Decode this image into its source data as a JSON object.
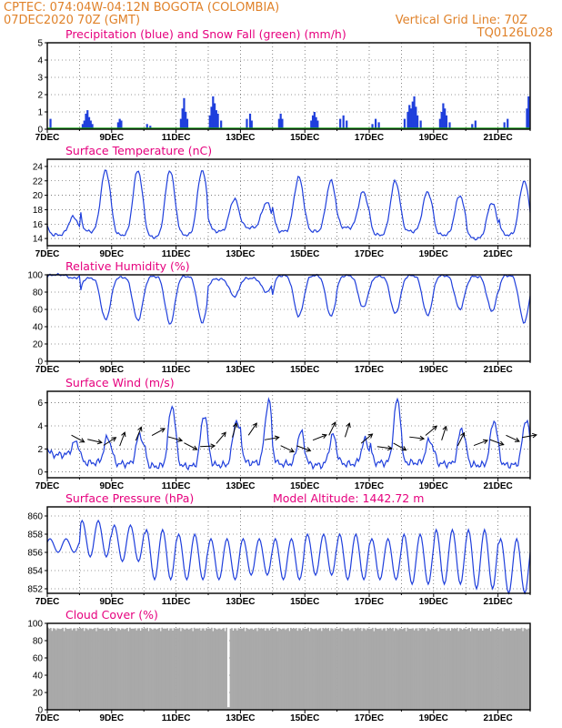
{
  "header": {
    "line1": "CPTEC:    074:04W-04:12N   BOGOTA (COLOMBIA)",
    "line2": "07DEC2020 70Z (GMT)",
    "grid_note": "Vertical Grid Line: 70Z",
    "code": "TQ0126L028"
  },
  "colors": {
    "header": "#e0822a",
    "title": "#e6007e",
    "series": "#1f3fdc",
    "snow": "#1aa01a",
    "cloud": "#a9a9a9"
  },
  "chart_data": [
    {
      "id": "precip",
      "type": "bar",
      "title": "Precipitation (blue) and Snow Fall (green) (mm/h)",
      "ylim": [
        0,
        5
      ],
      "yticks": [
        0,
        1,
        2,
        3,
        4,
        5
      ],
      "x_labels": [
        "7DEC",
        "9DEC",
        "11DEC",
        "13DEC",
        "15DEC",
        "17DEC",
        "19DEC",
        "21DEC"
      ],
      "x_range_days": [
        0,
        15
      ],
      "series": [
        {
          "name": "Precipitation",
          "color": "#1f3fdc",
          "points": [
            [
              0.1,
              0.6
            ],
            [
              1.1,
              0.3
            ],
            [
              1.15,
              0.5
            ],
            [
              1.2,
              0.9
            ],
            [
              1.25,
              1.1
            ],
            [
              1.3,
              0.7
            ],
            [
              1.35,
              0.5
            ],
            [
              1.4,
              0.3
            ],
            [
              2.2,
              0.4
            ],
            [
              2.25,
              0.6
            ],
            [
              2.3,
              0.5
            ],
            [
              3.1,
              0.3
            ],
            [
              3.2,
              0.2
            ],
            [
              4.15,
              0.6
            ],
            [
              4.2,
              1.2
            ],
            [
              4.25,
              1.8
            ],
            [
              4.3,
              1.0
            ],
            [
              4.35,
              0.6
            ],
            [
              5.05,
              0.8
            ],
            [
              5.1,
              1.3
            ],
            [
              5.15,
              1.9
            ],
            [
              5.2,
              1.5
            ],
            [
              5.25,
              1.1
            ],
            [
              5.3,
              0.9
            ],
            [
              5.4,
              0.5
            ],
            [
              6.2,
              0.6
            ],
            [
              6.3,
              0.9
            ],
            [
              6.35,
              0.5
            ],
            [
              7.2,
              0.6
            ],
            [
              7.25,
              0.9
            ],
            [
              7.3,
              0.6
            ],
            [
              8.2,
              0.5
            ],
            [
              8.25,
              0.8
            ],
            [
              8.3,
              1.0
            ],
            [
              8.35,
              0.7
            ],
            [
              8.4,
              0.5
            ],
            [
              9.1,
              0.6
            ],
            [
              9.2,
              0.8
            ],
            [
              9.3,
              0.5
            ],
            [
              10.1,
              0.3
            ],
            [
              10.2,
              0.6
            ],
            [
              10.3,
              0.4
            ],
            [
              11.1,
              0.6
            ],
            [
              11.2,
              1.0
            ],
            [
              11.25,
              1.4
            ],
            [
              11.3,
              1.2
            ],
            [
              11.35,
              1.6
            ],
            [
              11.4,
              1.9
            ],
            [
              11.45,
              1.3
            ],
            [
              11.5,
              0.8
            ],
            [
              11.6,
              0.5
            ],
            [
              12.2,
              0.6
            ],
            [
              12.25,
              1.0
            ],
            [
              12.3,
              1.5
            ],
            [
              12.35,
              1.2
            ],
            [
              12.4,
              0.8
            ],
            [
              12.5,
              0.4
            ],
            [
              13.2,
              0.3
            ],
            [
              13.3,
              0.5
            ],
            [
              14.2,
              0.4
            ],
            [
              14.3,
              0.6
            ],
            [
              14.9,
              1.2
            ],
            [
              14.95,
              1.9
            ]
          ]
        },
        {
          "name": "Snow Fall",
          "color": "#1aa01a",
          "points": []
        }
      ]
    },
    {
      "id": "temp",
      "type": "line",
      "title": "Surface Temperature (nC)",
      "ylim": [
        13,
        25
      ],
      "yticks": [
        14,
        16,
        18,
        20,
        22,
        24
      ],
      "x_labels": [
        "7DEC",
        "9DEC",
        "11DEC",
        "13DEC",
        "15DEC",
        "17DEC",
        "19DEC",
        "21DEC"
      ],
      "x_range_days": [
        0,
        15
      ],
      "series": [
        {
          "name": "Surface Temperature",
          "color": "#1f3fdc",
          "daily_min": [
            14.5,
            15,
            14.5,
            14.2,
            14.5,
            15,
            15.5,
            15,
            15,
            15.5,
            14.5,
            15,
            14.5,
            14,
            14.5,
            17.5
          ],
          "daily_max": [
            17,
            23.5,
            23.5,
            23.5,
            23.5,
            19.5,
            19,
            22.5,
            22,
            20.5,
            22,
            20.5,
            20,
            19,
            22,
            23.5
          ]
        }
      ]
    },
    {
      "id": "rh",
      "type": "line",
      "title": "Relative Humidity (%)",
      "ylim": [
        0,
        100
      ],
      "yticks": [
        0,
        20,
        40,
        60,
        80,
        100
      ],
      "x_labels": [
        "7DEC",
        "9DEC",
        "11DEC",
        "13DEC",
        "15DEC",
        "17DEC",
        "19DEC",
        "21DEC"
      ],
      "x_range_days": [
        0,
        15
      ],
      "series": [
        {
          "name": "Relative Humidity",
          "color": "#1f3fdc",
          "daily_min": [
            96,
            48,
            47,
            43,
            45,
            75,
            80,
            52,
            52,
            62,
            55,
            53,
            60,
            58,
            45,
            50
          ],
          "daily_max": [
            100,
            96,
            97,
            98,
            98,
            95,
            96,
            99,
            99,
            99,
            98,
            99,
            99,
            98,
            99,
            100
          ]
        }
      ]
    },
    {
      "id": "wind",
      "type": "line",
      "title": "Surface Wind (m/s)",
      "ylim": [
        -0.5,
        7
      ],
      "yticks": [
        0,
        2,
        4,
        6
      ],
      "x_labels": [
        "7DEC",
        "9DEC",
        "11DEC",
        "13DEC",
        "15DEC",
        "17DEC",
        "19DEC",
        "21DEC"
      ],
      "x_range_days": [
        0,
        15
      ],
      "series": [
        {
          "name": "Surface Wind",
          "color": "#1f3fdc",
          "daily_min": [
            1.5,
            0.8,
            0.7,
            0.5,
            0.5,
            0.6,
            0.8,
            0.7,
            0.6,
            0.7,
            0.8,
            0.8,
            0.7,
            0.6,
            0.6,
            0.5
          ],
          "daily_max": [
            2.6,
            3.0,
            3.3,
            5.8,
            5.0,
            4.5,
            6.2,
            3.5,
            3.2,
            2.8,
            6.3,
            2.8,
            3.8,
            4.5,
            4.6,
            3.5
          ]
        }
      ],
      "vectors": {
        "every_days": 0.5,
        "color": "#000000"
      }
    },
    {
      "id": "press",
      "type": "line",
      "title": "Surface Pressure (hPa)",
      "annotation": "Model Altitude: 1442.72 m",
      "ylim": [
        851.5,
        861
      ],
      "yticks": [
        852,
        854,
        856,
        858,
        860
      ],
      "x_labels": [
        "7DEC",
        "9DEC",
        "11DEC",
        "13DEC",
        "15DEC",
        "17DEC",
        "19DEC",
        "21DEC"
      ],
      "x_range_days": [
        0,
        15
      ],
      "series": [
        {
          "name": "Surface Pressure",
          "color": "#1f3fdc",
          "daily_low": [
            856.0,
            855.5,
            855.0,
            853.0,
            853.0,
            853.0,
            853.5,
            853.0,
            853.5,
            853.0,
            853.0,
            852.5,
            852.5,
            852.0,
            851.5,
            852.5
          ],
          "daily_high": [
            857.5,
            859.5,
            859.0,
            858.5,
            858.0,
            857.5,
            857.5,
            857.5,
            858.0,
            858.0,
            857.5,
            858.0,
            858.5,
            858.5,
            857.5,
            856.0
          ]
        }
      ]
    },
    {
      "id": "cloud",
      "type": "area",
      "title": "Cloud Cover (%)",
      "ylim": [
        0,
        100
      ],
      "yticks": [
        0,
        20,
        40,
        60,
        80,
        100
      ],
      "x_labels": [
        "7DEC",
        "9DEC",
        "11DEC",
        "13DEC",
        "15DEC",
        "17DEC",
        "19DEC",
        "21DEC"
      ],
      "x_range_days": [
        0,
        15
      ],
      "series": [
        {
          "name": "Cloud Cover",
          "color": "#a9a9a9",
          "typical_percent": 95,
          "minima": [
            [
              5.6,
              3
            ]
          ]
        }
      ]
    }
  ]
}
